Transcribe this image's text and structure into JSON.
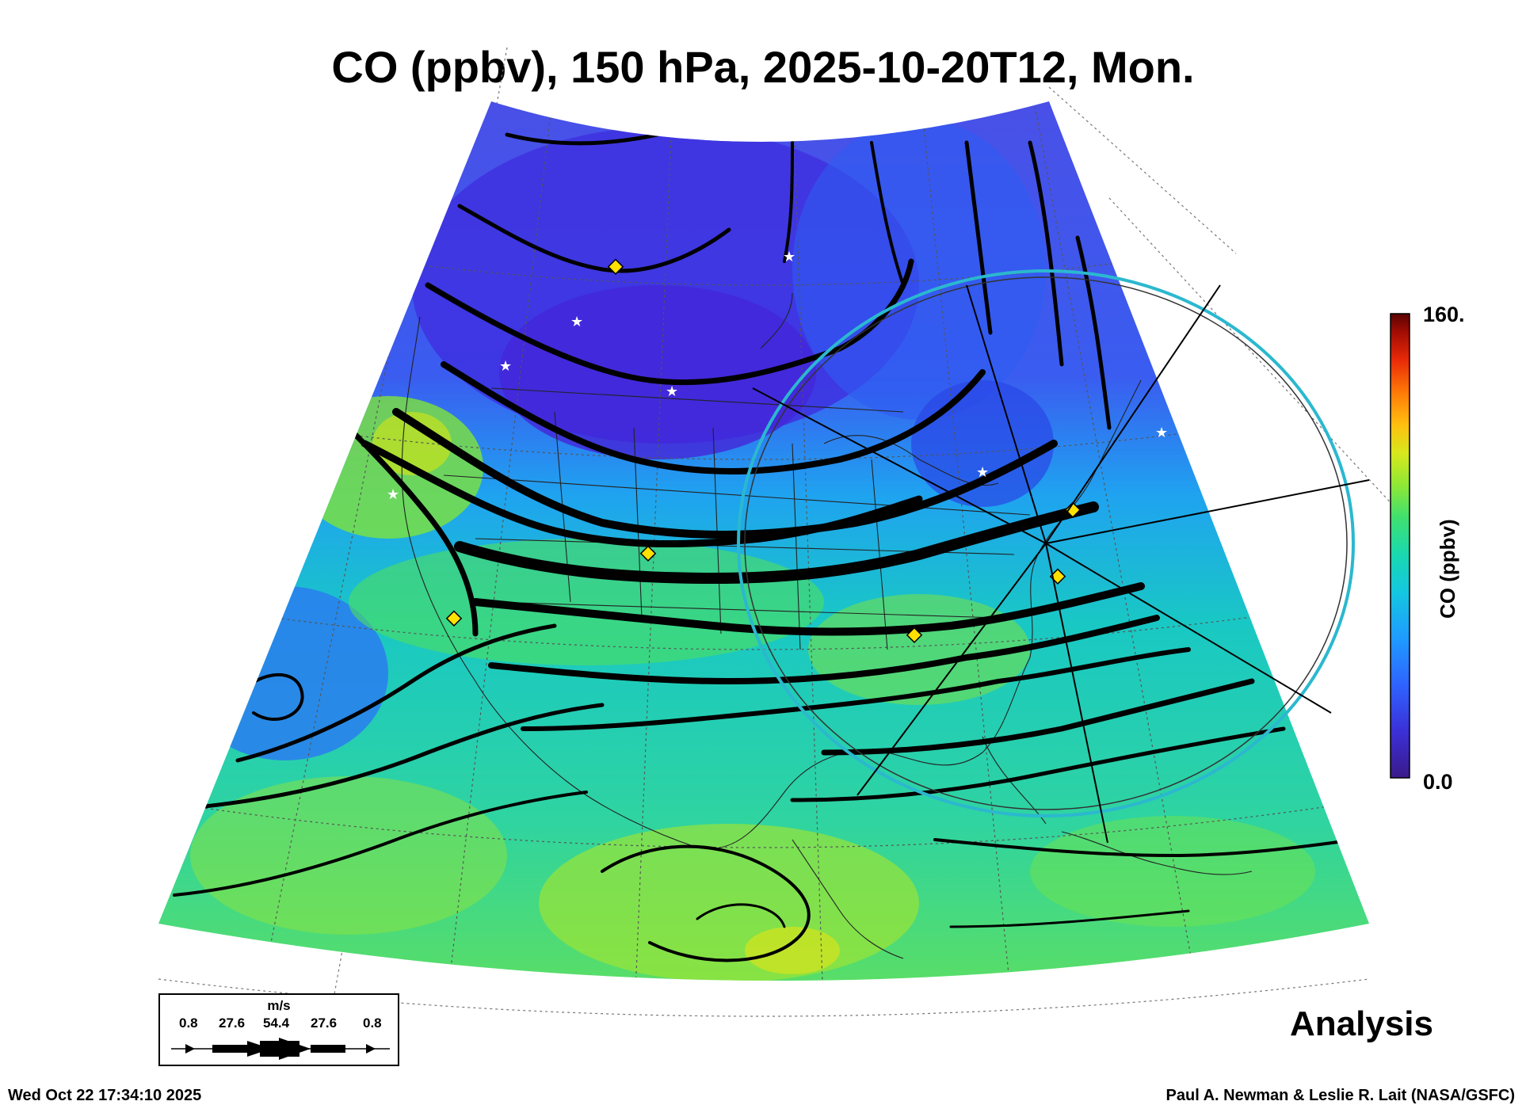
{
  "title": "CO (ppbv), 150 hPa, 2025-10-20T12, Mon.",
  "colorbar": {
    "label": "CO (ppbv)",
    "max_label": "160.",
    "min_label": "0.0",
    "colors": [
      "#3a1a8a",
      "#3b30d8",
      "#2f63ff",
      "#1f9bff",
      "#14c7e0",
      "#19d8b0",
      "#3fe070",
      "#8ee836",
      "#d8e81c",
      "#ffbf10",
      "#ff7a08",
      "#e82a08",
      "#a20c04",
      "#5a0402"
    ]
  },
  "legend": {
    "unit": "m/s",
    "values": [
      "0.8",
      "27.6",
      "54.4",
      "27.6",
      "0.8"
    ]
  },
  "stamp": "Analysis",
  "timestamp": "Wed Oct 22 17:34:10 2025",
  "credit": "Paul A. Newman & Leslie R. Lait (NASA/GSFC)",
  "map": {
    "background_colors": {
      "north": "#3e4de8",
      "mid": "#19c4cf",
      "south": "#6fe34a"
    },
    "streamline_color": "#000000",
    "circle_color": "#2bb8cf",
    "station_marker_color": "#ffe100",
    "star_marker_color": "#ffffff"
  }
}
